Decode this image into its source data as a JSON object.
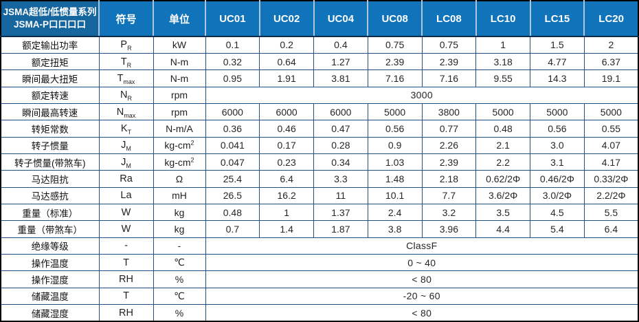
{
  "table": {
    "corner": {
      "line1": "JSMA超低/低惯量系列",
      "line2": "JSMA-P口口口口"
    },
    "symbol_header": "符号",
    "unit_header": "单位",
    "models": [
      "UC01",
      "UC02",
      "UC04",
      "UC08",
      "LC08",
      "LC10",
      "LC15",
      "LC20"
    ],
    "rows": [
      {
        "label": "额定输出功率",
        "symbol": "P",
        "symbol_sub": "R",
        "unit": "kW",
        "values": [
          "0.1",
          "0.2",
          "0.4",
          "0.75",
          "0.75",
          "1",
          "1.5",
          "2"
        ]
      },
      {
        "label": "额定扭矩",
        "symbol": "T",
        "symbol_sub": "R",
        "unit": "N-m",
        "values": [
          "0.32",
          "0.64",
          "1.27",
          "2.39",
          "2.39",
          "3.18",
          "4.77",
          "6.37"
        ]
      },
      {
        "label": "瞬间最大扭矩",
        "symbol": "T",
        "symbol_sub": "max",
        "unit": "N-m",
        "values": [
          "0.95",
          "1.91",
          "3.81",
          "7.16",
          "7.16",
          "9.55",
          "14.3",
          "19.1"
        ]
      },
      {
        "label": "额定转速",
        "symbol": "N",
        "symbol_sub": "R",
        "unit": "rpm",
        "span_value": "3000"
      },
      {
        "label": "瞬间最高转速",
        "symbol": "N",
        "symbol_sub": "max",
        "unit": "rpm",
        "values": [
          "6000",
          "6000",
          "6000",
          "5000",
          "3800",
          "5000",
          "5000",
          "5000"
        ]
      },
      {
        "label": "转矩常数",
        "symbol": "K",
        "symbol_sub": "T",
        "unit": "N-m/A",
        "values": [
          "0.36",
          "0.46",
          "0.47",
          "0.56",
          "0.77",
          "0.48",
          "0.56",
          "0.55"
        ]
      },
      {
        "label": "转子惯量",
        "symbol": "J",
        "symbol_sub": "M",
        "unit": "kg-cm",
        "unit_sup": "2",
        "values": [
          "0.041",
          "0.17",
          "0.28",
          "0.9",
          "2.26",
          "2.1",
          "3.0",
          "4.07"
        ]
      },
      {
        "label": "转子惯量(带煞车)",
        "symbol": "J",
        "symbol_sub": "M",
        "unit": "kg-cm",
        "unit_sup": "2",
        "values": [
          "0.047",
          "0.23",
          "0.34",
          "1.03",
          "2.39",
          "2.2",
          "3.1",
          "4.17"
        ]
      },
      {
        "label": "马达阻抗",
        "symbol": "Ra",
        "unit": "Ω",
        "values": [
          "25.4",
          "6.4",
          "3.3",
          "1.48",
          "2.18",
          "0.62/2Φ",
          "0.46/2Φ",
          "0.33/2Φ"
        ]
      },
      {
        "label": "马达感抗",
        "symbol": "La",
        "unit": "mH",
        "values": [
          "26.5",
          "16.2",
          "11",
          "10.1",
          "7.7",
          "3.6/2Φ",
          "3.0/2Φ",
          "2.2/2Φ"
        ]
      },
      {
        "label": "重量（标准）",
        "symbol": "W",
        "unit": "kg",
        "values": [
          "0.48",
          "1",
          "1.37",
          "2.4",
          "3.2",
          "3.5",
          "4.5",
          "5.5"
        ]
      },
      {
        "label": "重量（带煞车）",
        "symbol": "W",
        "unit": "kg",
        "values": [
          "0.7",
          "1.4",
          "1.87",
          "3.8",
          "3.96",
          "4.4",
          "5.4",
          "6.4"
        ]
      },
      {
        "label": "绝缘等级",
        "symbol": "-",
        "unit": "-",
        "span_value": "ClassF"
      },
      {
        "label": "操作温度",
        "symbol": "T",
        "unit": "℃",
        "span_value": "0 ~ 40"
      },
      {
        "label": "操作湿度",
        "symbol": "RH",
        "unit": "%",
        "span_value": "< 80"
      },
      {
        "label": "储藏温度",
        "symbol": "T",
        "unit": "℃",
        "span_value": "-20 ~ 60"
      },
      {
        "label": "储藏湿度",
        "symbol": "RH",
        "unit": "%",
        "span_value": "< 80"
      }
    ],
    "colors": {
      "header_bg": "#1173b9",
      "corner_bg": "#15659f",
      "grid": "#1d5083",
      "outer_border": "#000000",
      "header_separator": "#aec6de"
    }
  }
}
